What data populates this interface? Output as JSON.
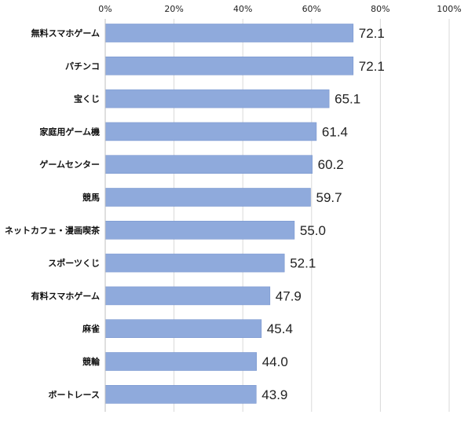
{
  "chart_data": {
    "type": "bar",
    "orientation": "horizontal",
    "categories": [
      "無料スマホゲーム",
      "パチンコ",
      "宝くじ",
      "家庭用ゲーム機",
      "ゲームセンター",
      "競馬",
      "ネットカフェ・漫画喫茶",
      "スポーツくじ",
      "有料スマホゲーム",
      "麻雀",
      "競輪",
      "ボートレース"
    ],
    "values": [
      72.1,
      72.1,
      65.1,
      61.4,
      60.2,
      59.7,
      55.0,
      52.1,
      47.9,
      45.4,
      44.0,
      43.9
    ],
    "value_labels": [
      "72.1",
      "72.1",
      "65.1",
      "61.4",
      "60.2",
      "59.7",
      "55.0",
      "52.1",
      "47.9",
      "45.4",
      "44.0",
      "43.9"
    ],
    "xticks": [
      0,
      20,
      40,
      60,
      80,
      100
    ],
    "xtick_labels": [
      "0%",
      "20%",
      "40%",
      "60%",
      "80%",
      "100%"
    ],
    "xlim": [
      0,
      100
    ],
    "x_axis_position": "top",
    "grid": true,
    "title": "",
    "xlabel": "",
    "ylabel": "",
    "colors": {
      "bar": "#8faadc",
      "bar_edge": "#7a97cf",
      "grid": "#d9d9d9",
      "axis": "#bfbfbf"
    }
  }
}
